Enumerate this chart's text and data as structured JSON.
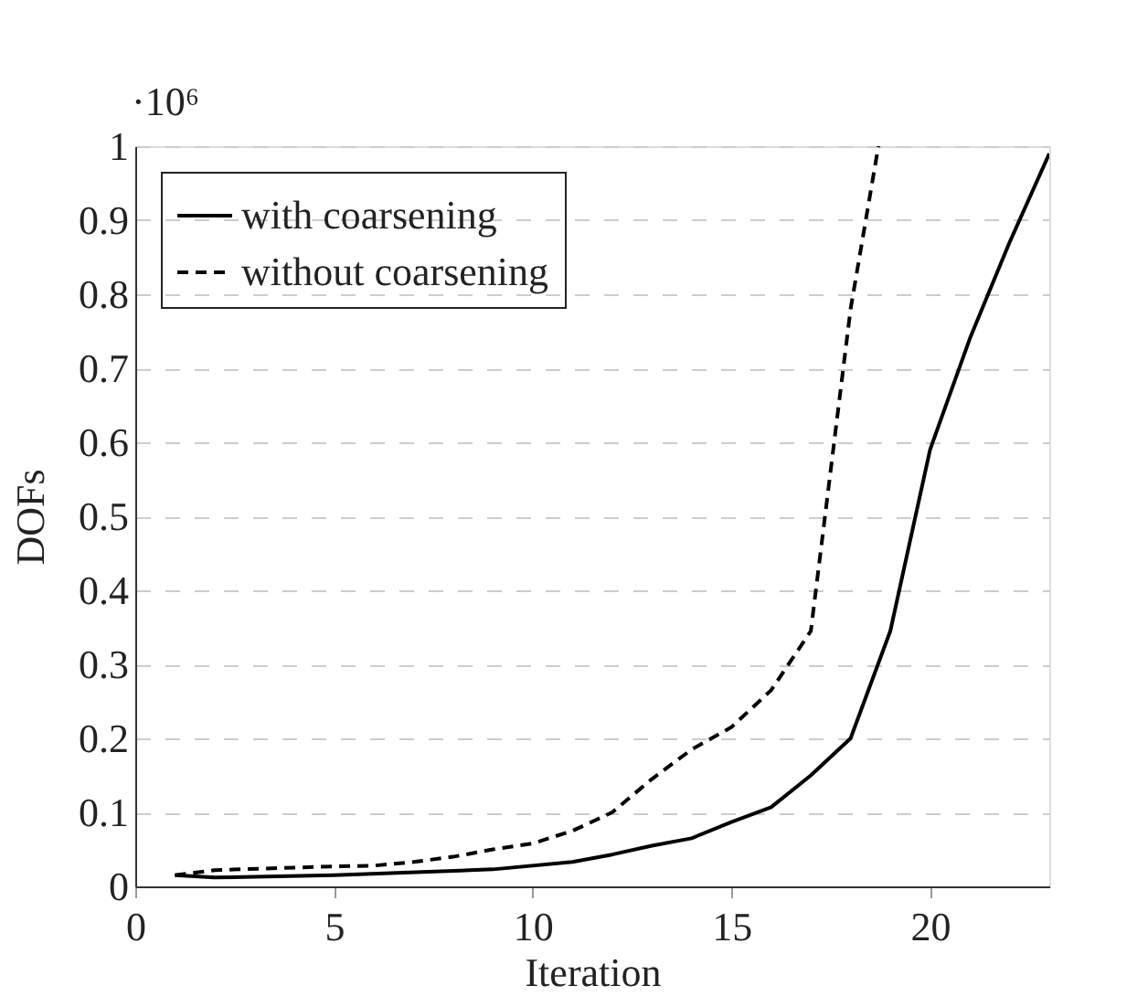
{
  "chart_data": {
    "type": "line",
    "xlabel": "Iteration",
    "ylabel": "DOFs",
    "annotations": [
      "·10⁶"
    ],
    "xlim": [
      0,
      23
    ],
    "xticks": [
      0,
      5,
      10,
      15,
      20
    ],
    "ylim": [
      0,
      1
    ],
    "yticks": [
      0,
      0.1,
      0.2,
      0.3,
      0.4,
      0.5,
      0.6,
      0.7,
      0.8,
      0.9,
      1
    ],
    "grid": "y",
    "legend": "top left",
    "series": [
      {
        "name": "with coarsening",
        "color": "#000000",
        "line_style": "solid",
        "x": [
          1,
          2,
          5,
          9,
          11,
          12,
          13,
          14,
          15,
          16,
          17,
          18,
          19,
          20,
          21,
          22,
          23
        ],
        "values": [
          0.015,
          0.012,
          0.015,
          0.023,
          0.033,
          0.043,
          0.055,
          0.065,
          0.087,
          0.107,
          0.15,
          0.2,
          0.345,
          0.59,
          0.74,
          0.87,
          0.99
        ]
      },
      {
        "name": "without coarsening",
        "color": "#000000",
        "line_style": "dashed",
        "x": [
          1,
          2,
          5,
          6,
          7,
          8,
          9,
          10,
          11,
          12,
          13,
          14,
          15,
          16,
          17,
          18,
          18.7
        ],
        "values": [
          0.015,
          0.022,
          0.027,
          0.028,
          0.033,
          0.04,
          0.05,
          0.058,
          0.075,
          0.1,
          0.145,
          0.185,
          0.215,
          0.265,
          0.345,
          0.78,
          1.0
        ]
      }
    ]
  }
}
